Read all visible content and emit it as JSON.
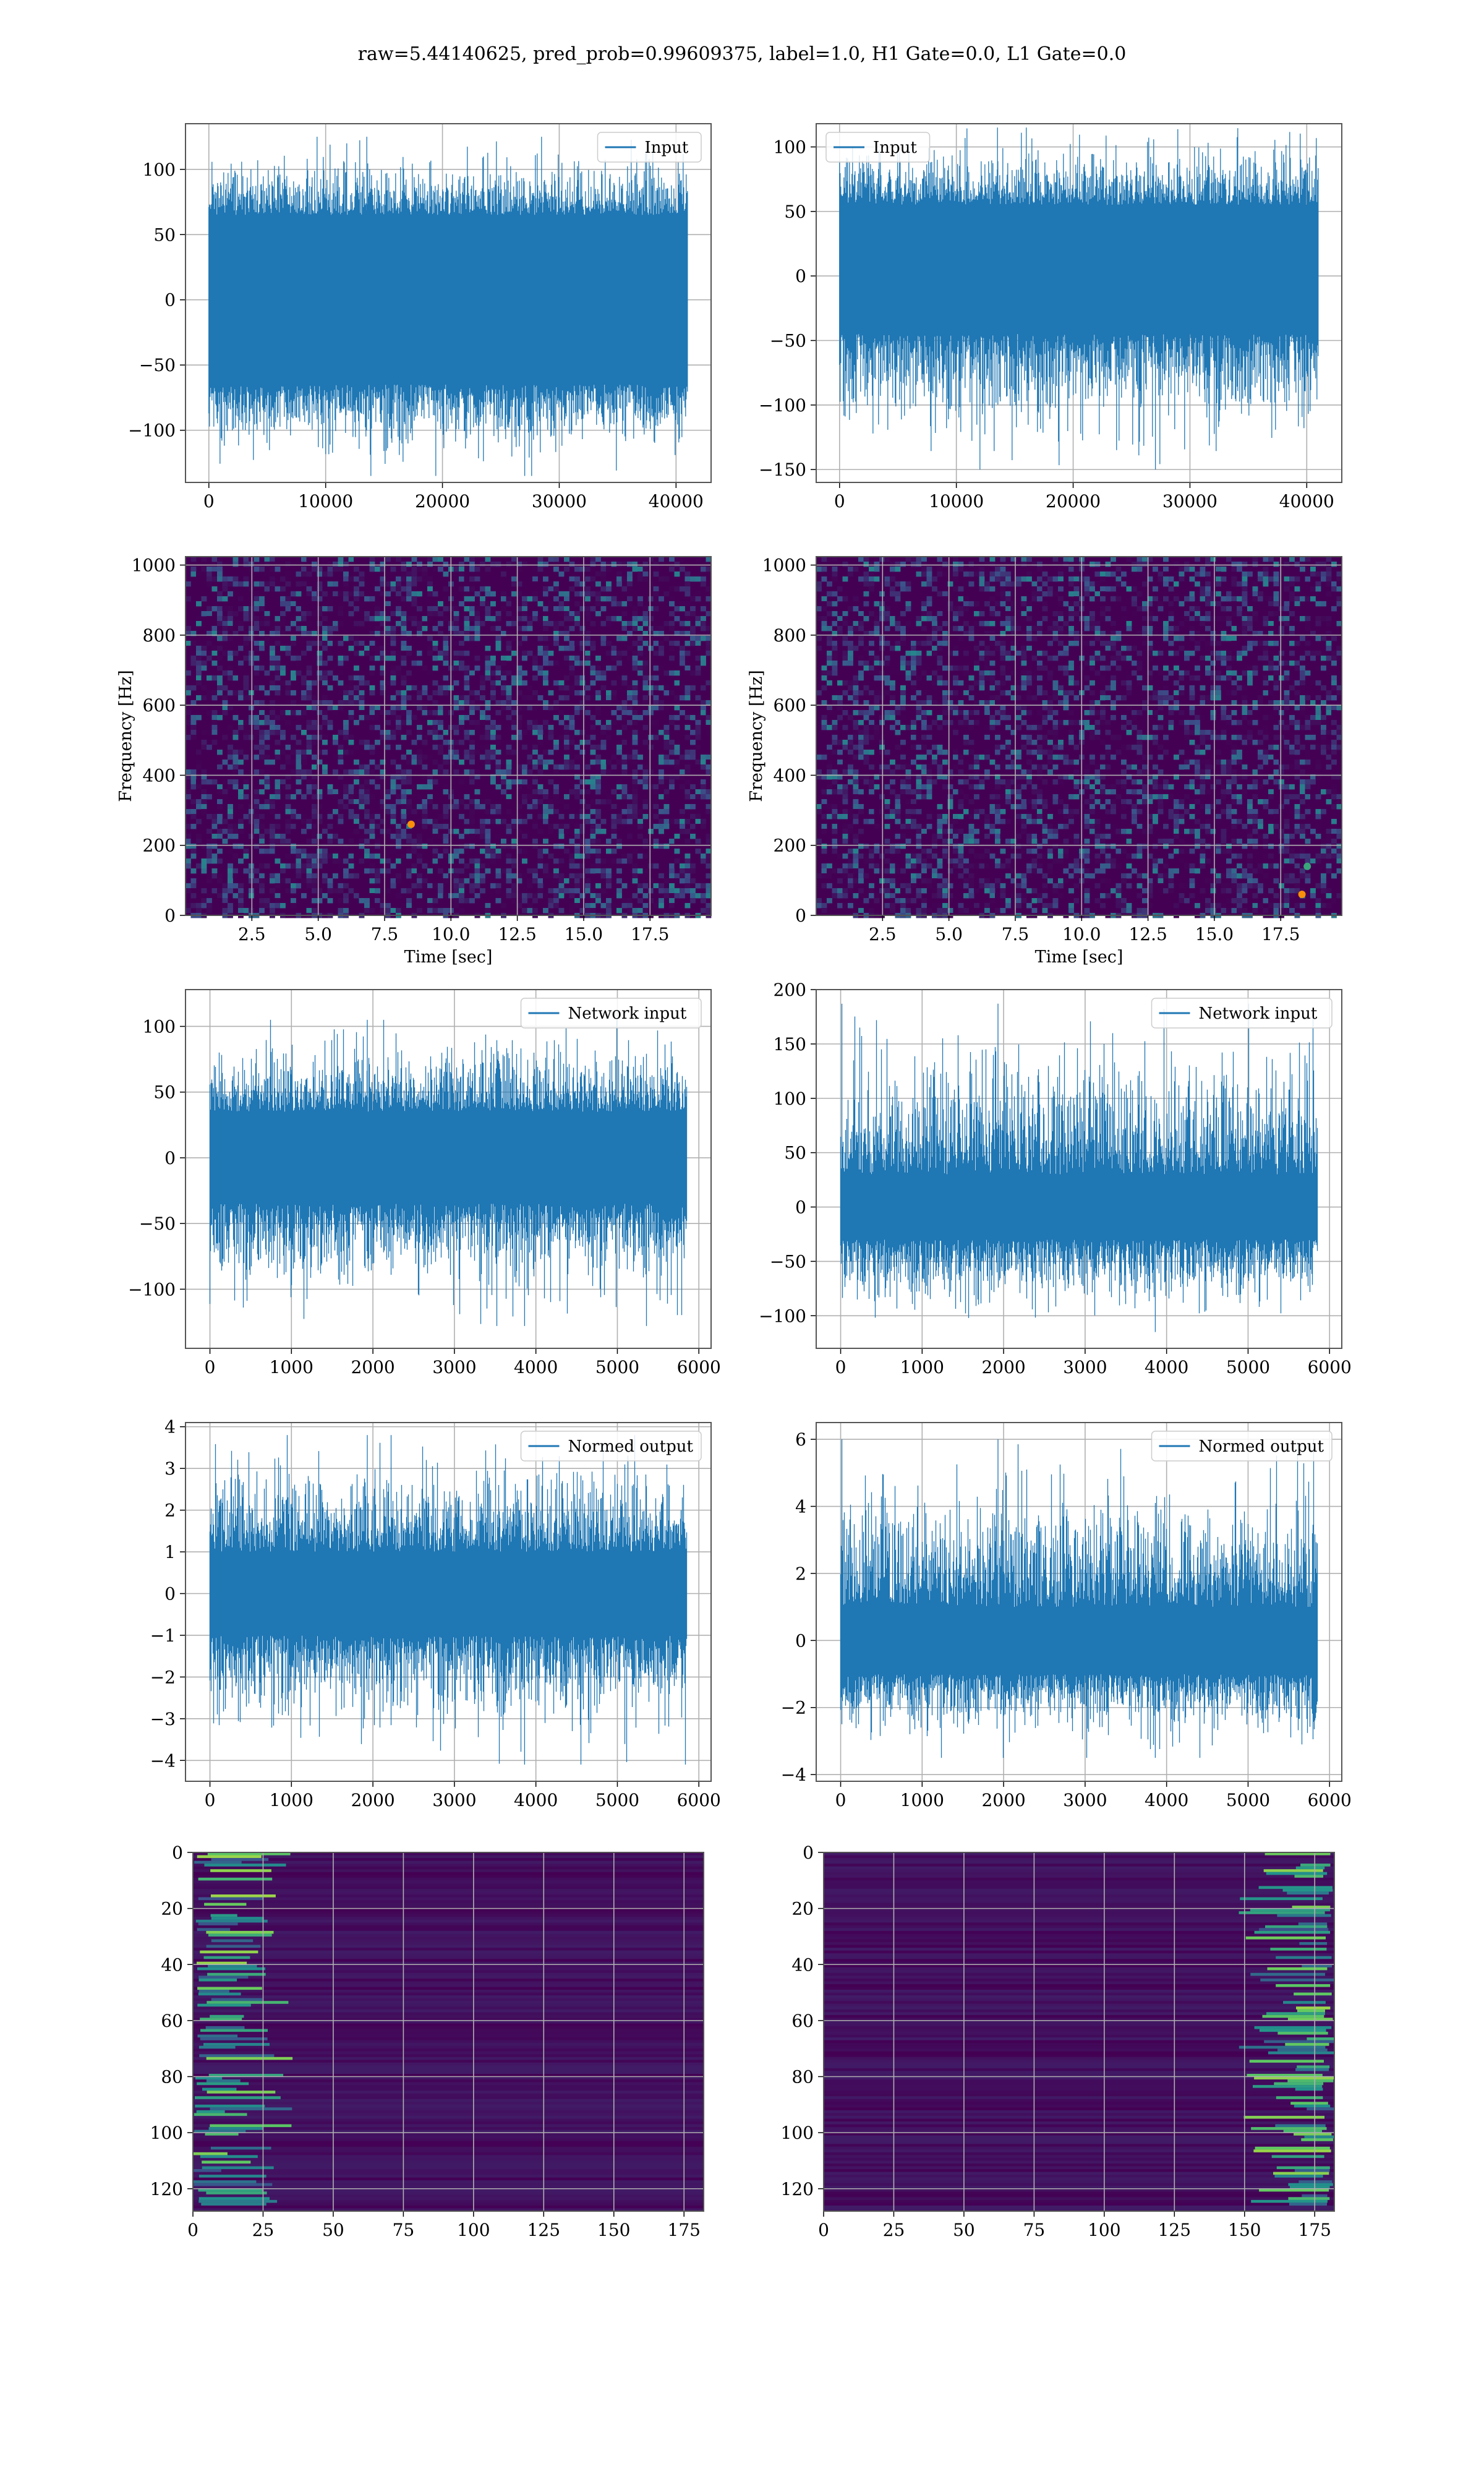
{
  "figure": {
    "title": "raw=5.44140625, pred_prob=0.99609375, label=1.0, H1 Gate=0.0, L1 Gate=0.0"
  },
  "colors": {
    "line": "#1f77b4",
    "grid": "#b0b0b0",
    "spine": "#555555",
    "viridis_dark": "#440154"
  },
  "chart_data": [
    {
      "id": "input-h1",
      "type": "line",
      "legend": "Input",
      "legend_position": "upper right",
      "xlim": [
        -2000,
        43000
      ],
      "ylim": [
        -140,
        135
      ],
      "xticks": [
        0,
        10000,
        20000,
        30000,
        40000
      ],
      "yticks": [
        -100,
        -50,
        0,
        50,
        100
      ],
      "series": [
        {
          "name": "Input",
          "n_points": 40960,
          "x_range": [
            0,
            40960
          ],
          "envelope": [
            -135,
            125
          ],
          "core_band": [
            -65,
            65
          ]
        }
      ]
    },
    {
      "id": "input-l1",
      "type": "line",
      "legend": "Input",
      "legend_position": "upper left",
      "xlim": [
        -2000,
        43000
      ],
      "ylim": [
        -160,
        118
      ],
      "xticks": [
        0,
        10000,
        20000,
        30000,
        40000
      ],
      "yticks": [
        -150,
        -100,
        -50,
        0,
        50,
        100
      ],
      "series": [
        {
          "name": "Input",
          "n_points": 40960,
          "x_range": [
            0,
            40960
          ],
          "envelope": [
            -150,
            115
          ],
          "core_band": [
            -45,
            55
          ]
        }
      ]
    },
    {
      "id": "spectrogram-h1",
      "type": "heatmap",
      "xlabel": "Time [sec]",
      "ylabel": "Frequency [Hz]",
      "xlim": [
        0,
        19.8
      ],
      "ylim": [
        0,
        1024
      ],
      "xticks": [
        2.5,
        5.0,
        7.5,
        10.0,
        12.5,
        15.0,
        17.5
      ],
      "xtick_labels": [
        "2.5",
        "5.0",
        "7.5",
        "10.0",
        "12.5",
        "15.0",
        "17.5"
      ],
      "yticks": [
        0,
        200,
        400,
        600,
        800,
        1000
      ],
      "colormap": "viridis",
      "hot_spots": [
        {
          "x": 8.5,
          "y": 260,
          "level": 1.0
        }
      ]
    },
    {
      "id": "spectrogram-l1",
      "type": "heatmap",
      "xlabel": "Time [sec]",
      "ylabel": "Frequency [Hz]",
      "xlim": [
        0,
        19.8
      ],
      "ylim": [
        0,
        1024
      ],
      "xticks": [
        2.5,
        5.0,
        7.5,
        10.0,
        12.5,
        15.0,
        17.5
      ],
      "xtick_labels": [
        "2.5",
        "5.0",
        "7.5",
        "10.0",
        "12.5",
        "15.0",
        "17.5"
      ],
      "yticks": [
        0,
        200,
        400,
        600,
        800,
        1000
      ],
      "colormap": "viridis",
      "hot_spots": [
        {
          "x": 18.3,
          "y": 60,
          "level": 1.0
        },
        {
          "x": 18.5,
          "y": 140,
          "level": 0.6
        }
      ]
    },
    {
      "id": "network-input-h1",
      "type": "line",
      "legend": "Network input",
      "legend_position": "upper right",
      "xlim": [
        -300,
        6150
      ],
      "ylim": [
        -145,
        128
      ],
      "xticks": [
        0,
        1000,
        2000,
        3000,
        4000,
        5000,
        6000
      ],
      "yticks": [
        -100,
        -50,
        0,
        50,
        100
      ],
      "series": [
        {
          "name": "Network input",
          "n_points": 5850,
          "x_range": [
            0,
            5850
          ],
          "envelope": [
            -128,
            105
          ],
          "core_band": [
            -35,
            35
          ]
        }
      ]
    },
    {
      "id": "network-input-l1",
      "type": "line",
      "legend": "Network input",
      "legend_position": "upper right",
      "xlim": [
        -300,
        6150
      ],
      "ylim": [
        -130,
        200
      ],
      "xticks": [
        0,
        1000,
        2000,
        3000,
        4000,
        5000,
        6000
      ],
      "yticks": [
        -100,
        -50,
        0,
        50,
        100,
        150,
        200
      ],
      "series": [
        {
          "name": "Network input",
          "n_points": 5850,
          "x_range": [
            0,
            5850
          ],
          "envelope": [
            -115,
            187
          ],
          "core_band": [
            -30,
            30
          ]
        }
      ]
    },
    {
      "id": "normed-output-h1",
      "type": "line",
      "legend": "Normed output",
      "legend_position": "upper right",
      "xlim": [
        -300,
        6150
      ],
      "ylim": [
        -4.5,
        4.1
      ],
      "xticks": [
        0,
        1000,
        2000,
        3000,
        4000,
        5000,
        6000
      ],
      "yticks": [
        -4,
        -3,
        -2,
        -1,
        0,
        1,
        2,
        3,
        4
      ],
      "series": [
        {
          "name": "Normed output",
          "n_points": 5850,
          "x_range": [
            0,
            5850
          ],
          "envelope": [
            -4.1,
            3.8
          ],
          "core_band": [
            -1.0,
            1.0
          ]
        }
      ]
    },
    {
      "id": "normed-output-l1",
      "type": "line",
      "legend": "Normed output",
      "legend_position": "upper right",
      "xlim": [
        -300,
        6150
      ],
      "ylim": [
        -4.2,
        6.5
      ],
      "xticks": [
        0,
        1000,
        2000,
        3000,
        4000,
        5000,
        6000
      ],
      "yticks": [
        -4,
        -2,
        0,
        2,
        4,
        6
      ],
      "series": [
        {
          "name": "Normed output",
          "n_points": 5850,
          "x_range": [
            0,
            5850
          ],
          "envelope": [
            -3.5,
            6.0
          ],
          "core_band": [
            -1.0,
            1.0
          ]
        }
      ]
    },
    {
      "id": "activation-h1",
      "type": "heatmap",
      "xlim": [
        0,
        182
      ],
      "ylim": [
        128,
        0
      ],
      "xticks": [
        0,
        25,
        50,
        75,
        100,
        125,
        150,
        175
      ],
      "yticks": [
        0,
        20,
        40,
        60,
        80,
        100,
        120
      ],
      "colormap": "viridis",
      "bright_region": "left"
    },
    {
      "id": "activation-l1",
      "type": "heatmap",
      "xlim": [
        0,
        182
      ],
      "ylim": [
        128,
        0
      ],
      "xticks": [
        0,
        25,
        50,
        75,
        100,
        125,
        150,
        175
      ],
      "yticks": [
        0,
        20,
        40,
        60,
        80,
        100,
        120
      ],
      "colormap": "viridis",
      "bright_region": "right"
    }
  ]
}
